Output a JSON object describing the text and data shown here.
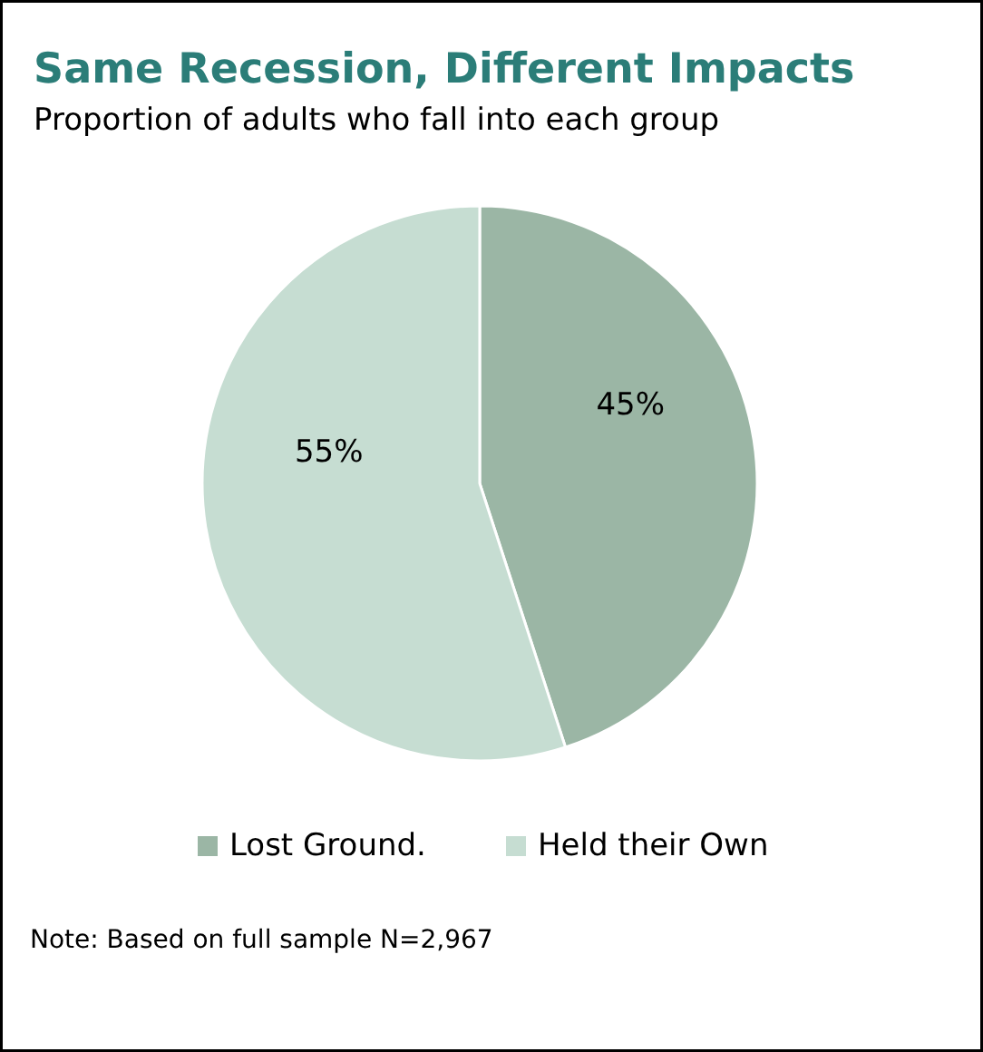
{
  "chart_data": {
    "type": "pie",
    "title": "Same Recession, Different Impacts",
    "subtitle": "Proportion of adults who fall into each group",
    "categories": [
      "Lost Ground.",
      "Held their Own"
    ],
    "values": [
      45,
      55
    ],
    "colors": [
      "#9bb6a5",
      "#c6ddd2"
    ],
    "value_labels": [
      "45%",
      "55%"
    ],
    "legend": "bottom",
    "annotations": [
      "Note: Based on full sample N=2,967"
    ]
  }
}
